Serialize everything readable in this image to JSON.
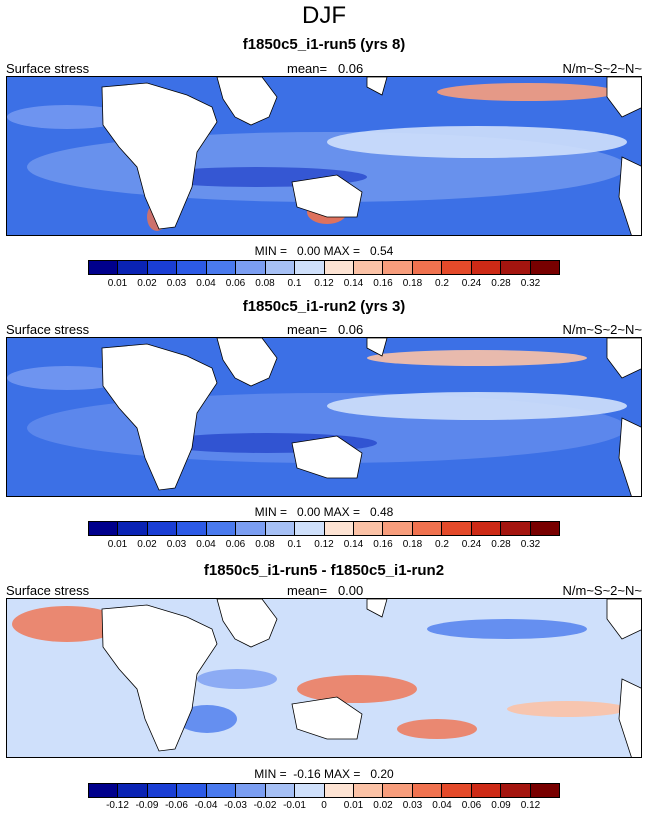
{
  "title": "DJF",
  "field_label": "Surface stress",
  "units": "N/m~S~2~N~",
  "panels": [
    {
      "title": "f1850c5_i1-run5 (yrs 8)",
      "mean": "mean=   0.06",
      "minmax": "MIN =   0.00 MAX =   0.54",
      "ticks": [
        "0.01",
        "0.02",
        "0.03",
        "0.04",
        "0.06",
        "0.08",
        "0.1",
        "0.12",
        "0.14",
        "0.16",
        "0.18",
        "0.2",
        "0.24",
        "0.28",
        "0.32"
      ],
      "colors": [
        "#00008c",
        "#0a23b4",
        "#1a3ed4",
        "#2c5ae6",
        "#4a7aee",
        "#7b9ef2",
        "#a6c0f5",
        "#cfe0fb",
        "#fde3d3",
        "#fbc2a6",
        "#f79d7c",
        "#f0724f",
        "#e44a2a",
        "#cd2a16",
        "#a4150f",
        "#780000"
      ]
    },
    {
      "title": "f1850c5_i1-run2 (yrs 3)",
      "mean": "mean=   0.06",
      "minmax": "MIN =   0.00 MAX =   0.48",
      "ticks": [
        "0.01",
        "0.02",
        "0.03",
        "0.04",
        "0.06",
        "0.08",
        "0.1",
        "0.12",
        "0.14",
        "0.16",
        "0.18",
        "0.2",
        "0.24",
        "0.28",
        "0.32"
      ],
      "colors": [
        "#00008c",
        "#0a23b4",
        "#1a3ed4",
        "#2c5ae6",
        "#4a7aee",
        "#7b9ef2",
        "#a6c0f5",
        "#cfe0fb",
        "#fde3d3",
        "#fbc2a6",
        "#f79d7c",
        "#f0724f",
        "#e44a2a",
        "#cd2a16",
        "#a4150f",
        "#780000"
      ]
    },
    {
      "title": "f1850c5_i1-run5 - f1850c5_i1-run2",
      "mean": "mean=   0.00",
      "minmax": "MIN =  -0.16 MAX =   0.20",
      "ticks": [
        "-0.12",
        "-0.09",
        "-0.06",
        "-0.04",
        "-0.03",
        "-0.02",
        "-0.01",
        "0",
        "0.01",
        "0.02",
        "0.03",
        "0.04",
        "0.06",
        "0.09",
        "0.12"
      ],
      "colors": [
        "#00008c",
        "#0a23b4",
        "#1a3ed4",
        "#2c5ae6",
        "#4a7aee",
        "#7b9ef2",
        "#a6c0f5",
        "#cfe0fb",
        "#fde3d3",
        "#fbc2a6",
        "#f79d7c",
        "#f0724f",
        "#e44a2a",
        "#cd2a16",
        "#a4150f",
        "#780000"
      ]
    }
  ]
}
